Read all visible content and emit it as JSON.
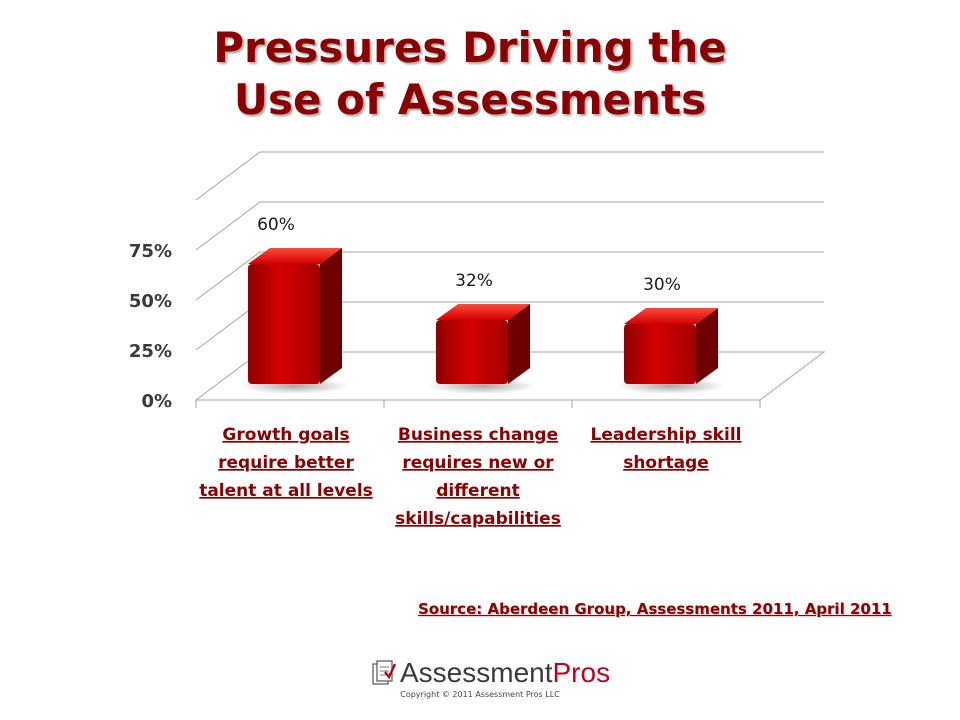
{
  "chart_data": {
    "type": "bar",
    "title_lines": [
      "Pressures Driving the",
      "Use of Assessments"
    ],
    "categories": [
      [
        "Growth goals",
        "require better",
        "talent at all levels"
      ],
      [
        "Business change",
        "requires new or",
        "different",
        "skills/capabilities"
      ],
      [
        "Leadership skill",
        "shortage"
      ]
    ],
    "values": [
      60,
      32,
      30
    ],
    "data_labels": [
      "60%",
      "32%",
      "30%"
    ],
    "y_ticks": [
      0,
      25,
      50,
      75
    ],
    "y_tick_labels": [
      "0%",
      "25%",
      "50%",
      "75%"
    ],
    "ylim": [
      0,
      100
    ],
    "bar_color": "#c00000",
    "label_color": "#8b0000",
    "grid": true,
    "legend": "none"
  },
  "source": "Source: Aberdeen Group, Assessments 2011, April 2011",
  "logo": {
    "assessment": "Assessment",
    "pros": "Pros",
    "icon": "document-check-icon"
  },
  "copyright": "Copyright © 2011 Assessment Pros LLC"
}
